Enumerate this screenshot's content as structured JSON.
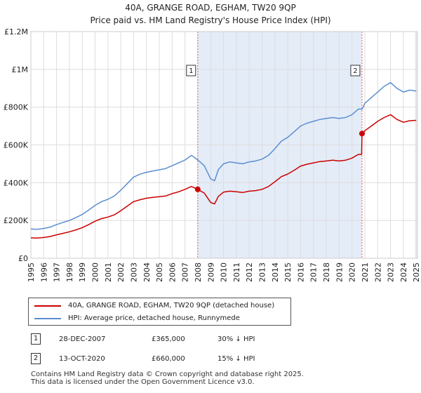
{
  "title": "40A, GRANGE ROAD, EGHAM, TW20 9QP",
  "subtitle": "Price paid vs. HM Land Registry's House Price Index (HPI)",
  "legend": {
    "property_label": "40A, GRANGE ROAD, EGHAM, TW20 9QP (detached house)",
    "hpi_label": "HPI: Average price, detached house, Runnymede"
  },
  "colors": {
    "property": "#cc0000",
    "hpi": "#5b8fd0",
    "shade": "#e4ecf8",
    "vline": "#e06060"
  },
  "annotations": [
    {
      "num": "1",
      "date": "28-DEC-2007",
      "price": "£365,000",
      "hpi_diff": "30% ↓ HPI"
    },
    {
      "num": "2",
      "date": "13-OCT-2020",
      "price": "£660,000",
      "hpi_diff": "15% ↓ HPI"
    }
  ],
  "footer": {
    "line1": "Contains HM Land Registry data © Crown copyright and database right 2025.",
    "line2": "This data is licensed under the Open Government Licence v3.0."
  },
  "chart_data": {
    "type": "line",
    "title": "40A, GRANGE ROAD, EGHAM, TW20 9QP",
    "subtitle": "Price paid vs. HM Land Registry's House Price Index (HPI)",
    "xlim": [
      1995,
      2025.1
    ],
    "ylim": [
      0,
      1200000
    ],
    "y_ticks": [
      {
        "value": 0,
        "label": "£0"
      },
      {
        "value": 200000,
        "label": "£200K"
      },
      {
        "value": 400000,
        "label": "£400K"
      },
      {
        "value": 600000,
        "label": "£600K"
      },
      {
        "value": 800000,
        "label": "£800K"
      },
      {
        "value": 1000000,
        "label": "£1M"
      },
      {
        "value": 1200000,
        "label": "£1.2M"
      }
    ],
    "x_ticks": [
      "1995",
      "1996",
      "1997",
      "1998",
      "1999",
      "2000",
      "2001",
      "2002",
      "2003",
      "2004",
      "2005",
      "2006",
      "2007",
      "2008",
      "2009",
      "2010",
      "2011",
      "2012",
      "2013",
      "2014",
      "2015",
      "2016",
      "2017",
      "2018",
      "2019",
      "2020",
      "2021",
      "2022",
      "2023",
      "2024",
      "2025"
    ],
    "grid": true,
    "shaded_region": [
      2007.99,
      2020.78
    ],
    "sales": [
      {
        "label": "1",
        "x": 2007.99,
        "y": 365000
      },
      {
        "label": "2",
        "x": 2020.78,
        "y": 660000
      }
    ],
    "series": [
      {
        "name": "HPI: Average price, detached house, Runnymede",
        "x": [
          1995,
          1995.5,
          1996,
          1996.5,
          1997,
          1997.5,
          1998,
          1998.5,
          1999,
          1999.5,
          2000,
          2000.5,
          2001,
          2001.5,
          2002,
          2002.5,
          2003,
          2003.5,
          2004,
          2004.5,
          2005,
          2005.5,
          2006,
          2006.5,
          2007,
          2007.5,
          2008,
          2008.5,
          2009,
          2009.3,
          2009.6,
          2010,
          2010.5,
          2011,
          2011.5,
          2012,
          2012.5,
          2013,
          2013.5,
          2014,
          2014.5,
          2015,
          2015.5,
          2016,
          2016.5,
          2017,
          2017.5,
          2018,
          2018.5,
          2019,
          2019.5,
          2020,
          2020.5,
          2020.8,
          2021,
          2021.5,
          2022,
          2022.5,
          2023,
          2023.5,
          2024,
          2024.5,
          2025
        ],
        "values": [
          155000,
          153000,
          158000,
          165000,
          178000,
          190000,
          200000,
          215000,
          232000,
          255000,
          280000,
          300000,
          312000,
          330000,
          360000,
          395000,
          430000,
          445000,
          455000,
          462000,
          468000,
          475000,
          490000,
          505000,
          520000,
          545000,
          520000,
          490000,
          420000,
          410000,
          470000,
          500000,
          510000,
          505000,
          500000,
          510000,
          515000,
          525000,
          545000,
          580000,
          620000,
          640000,
          670000,
          700000,
          715000,
          725000,
          735000,
          740000,
          745000,
          740000,
          745000,
          760000,
          790000,
          790000,
          820000,
          850000,
          880000,
          910000,
          930000,
          900000,
          880000,
          890000,
          885000
        ]
      },
      {
        "name": "40A, GRANGE ROAD, EGHAM, TW20 9QP (detached house)",
        "x": [
          1995,
          1995.5,
          1996,
          1996.5,
          1997,
          1997.5,
          1998,
          1998.5,
          1999,
          1999.5,
          2000,
          2000.5,
          2001,
          2001.5,
          2002,
          2002.5,
          2003,
          2003.5,
          2004,
          2004.5,
          2005,
          2005.5,
          2006,
          2006.5,
          2007,
          2007.5,
          2007.99,
          2008.5,
          2009,
          2009.3,
          2009.6,
          2010,
          2010.5,
          2011,
          2011.5,
          2012,
          2012.5,
          2013,
          2013.5,
          2014,
          2014.5,
          2015,
          2015.5,
          2016,
          2016.5,
          2017,
          2017.5,
          2018,
          2018.5,
          2019,
          2019.5,
          2020,
          2020.5,
          2020.75,
          2020.78,
          2021,
          2021.5,
          2022,
          2022.5,
          2023,
          2023.5,
          2024,
          2024.5,
          2025
        ],
        "values": [
          108000,
          107000,
          110000,
          115000,
          124000,
          132000,
          140000,
          150000,
          162000,
          178000,
          196000,
          210000,
          218000,
          230000,
          252000,
          276000,
          300000,
          310000,
          318000,
          322000,
          326000,
          330000,
          342000,
          352000,
          365000,
          380000,
          365000,
          345000,
          295000,
          288000,
          328000,
          350000,
          355000,
          352000,
          348000,
          355000,
          358000,
          365000,
          380000,
          405000,
          432000,
          446000,
          466000,
          488000,
          498000,
          505000,
          512000,
          515000,
          519000,
          515000,
          519000,
          530000,
          550000,
          550000,
          660000,
          675000,
          700000,
          725000,
          745000,
          760000,
          735000,
          720000,
          728000,
          730000
        ]
      }
    ]
  }
}
